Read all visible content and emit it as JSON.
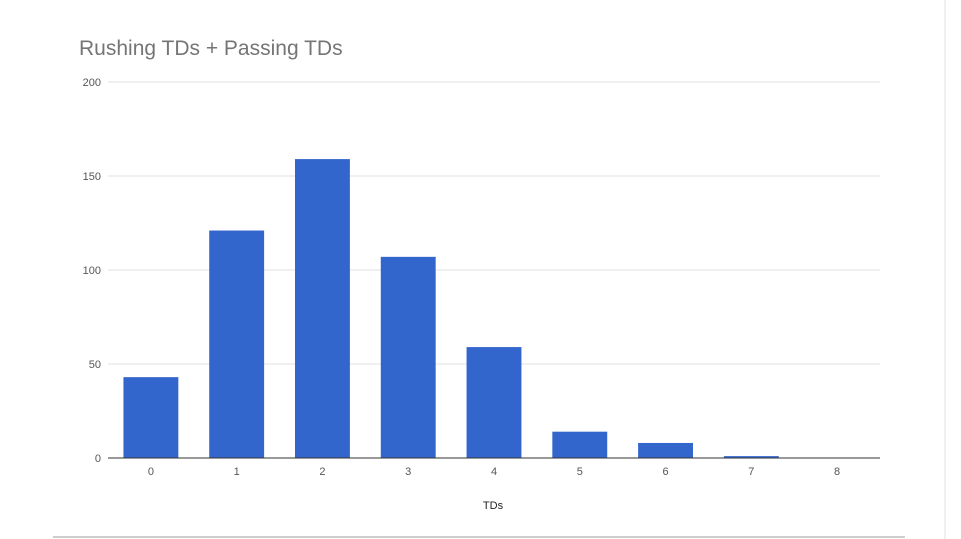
{
  "chart_data": {
    "type": "bar",
    "title": "Rushing TDs + Passing TDs",
    "xlabel": "TDs",
    "ylabel": "",
    "categories": [
      "0",
      "1",
      "2",
      "3",
      "4",
      "5",
      "6",
      "7",
      "8"
    ],
    "values": [
      43,
      121,
      159,
      107,
      59,
      14,
      8,
      1,
      0
    ],
    "ylim": [
      0,
      200
    ],
    "yticks": [
      0,
      50,
      100,
      150,
      200
    ],
    "grid": true,
    "legend": "none",
    "colors": {
      "bar": "#3366cc",
      "grid": "#e0e0e0",
      "baseline": "#333333"
    }
  }
}
